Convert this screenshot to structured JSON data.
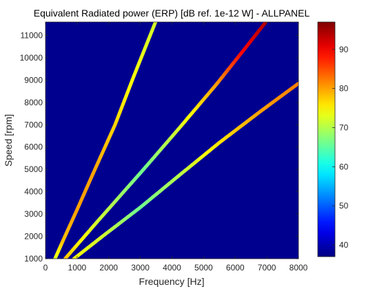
{
  "chart_data": {
    "type": "heatmap",
    "title": "Equivalent Radiated power (ERP) [dB ref. 1e-12 W] - ALLPANEL",
    "xlabel": "Frequency [Hz]",
    "ylabel": "Speed [rpm]",
    "xlim": [
      0,
      8000
    ],
    "ylim": [
      1000,
      11600
    ],
    "xticks": [
      0,
      1000,
      2000,
      3000,
      4000,
      5000,
      6000,
      7000,
      8000
    ],
    "yticks": [
      1000,
      2000,
      3000,
      4000,
      5000,
      6000,
      7000,
      8000,
      9000,
      10000,
      11000
    ],
    "background_value": 37,
    "colorbar": {
      "colormap": "jet",
      "clim": [
        37,
        97
      ],
      "ticks": [
        40,
        50,
        60,
        70,
        80,
        90
      ]
    },
    "series": [
      {
        "points": [
          {
            "x": 300,
            "y": 1000,
            "value": 72
          },
          {
            "x": 550,
            "y": 1800,
            "value": 78
          },
          {
            "x": 1000,
            "y": 3200,
            "value": 80
          },
          {
            "x": 1500,
            "y": 4800,
            "value": 80
          },
          {
            "x": 2200,
            "y": 7000,
            "value": 77
          },
          {
            "x": 2800,
            "y": 9200,
            "value": 74
          },
          {
            "x": 3480,
            "y": 11600,
            "value": 72
          }
        ]
      },
      {
        "points": [
          {
            "x": 620,
            "y": 1000,
            "value": 78
          },
          {
            "x": 1600,
            "y": 2600,
            "value": 72
          },
          {
            "x": 3100,
            "y": 5000,
            "value": 66
          },
          {
            "x": 4200,
            "y": 6800,
            "value": 72
          },
          {
            "x": 5400,
            "y": 8800,
            "value": 80
          },
          {
            "x": 6300,
            "y": 10400,
            "value": 90
          },
          {
            "x": 6970,
            "y": 11600,
            "value": 94
          }
        ]
      },
      {
        "points": [
          {
            "x": 900,
            "y": 1000,
            "value": 74
          },
          {
            "x": 1800,
            "y": 2000,
            "value": 72
          },
          {
            "x": 3000,
            "y": 3300,
            "value": 66
          },
          {
            "x": 4200,
            "y": 4700,
            "value": 70
          },
          {
            "x": 5500,
            "y": 6200,
            "value": 76
          },
          {
            "x": 6800,
            "y": 7600,
            "value": 80
          },
          {
            "x": 8000,
            "y": 8850,
            "value": 82
          }
        ]
      }
    ]
  }
}
